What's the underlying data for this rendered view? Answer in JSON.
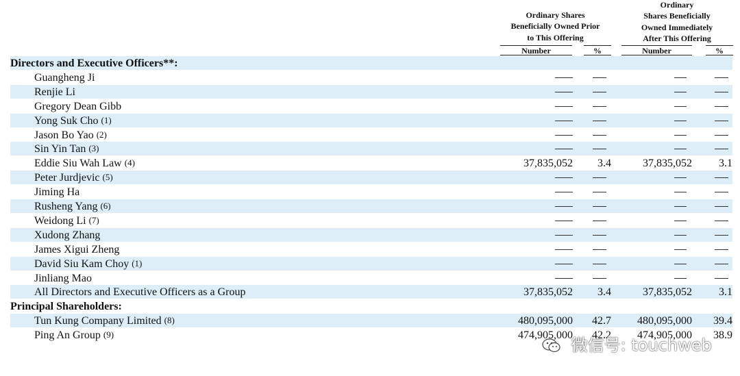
{
  "header": {
    "prior_lines": [
      "Ordinary Shares",
      "Beneficially Owned Prior",
      "to This Offering"
    ],
    "after_lines": [
      "Ordinary",
      "Shares Beneficially",
      "Owned Immediately",
      "After This Offering"
    ],
    "number_label": "Number",
    "percent_label": "%"
  },
  "rows": [
    {
      "name": "Directors and Executive Officers**:",
      "note": "",
      "section": true
    },
    {
      "name": "Guangheng Ji",
      "note": "",
      "v1": "—",
      "v2": "—",
      "v3": "—",
      "v4": "—"
    },
    {
      "name": "Renjie Li",
      "note": "",
      "v1": "—",
      "v2": "—",
      "v3": "—",
      "v4": "—"
    },
    {
      "name": "Gregory Dean Gibb",
      "note": "",
      "v1": "—",
      "v2": "—",
      "v3": "—",
      "v4": "—"
    },
    {
      "name": "Yong Suk Cho",
      "note": "(1)",
      "v1": "—",
      "v2": "—",
      "v3": "—",
      "v4": "—"
    },
    {
      "name": "Jason Bo Yao",
      "note": "(2)",
      "v1": "—",
      "v2": "—",
      "v3": "—",
      "v4": "—"
    },
    {
      "name": "Sin Yin Tan",
      "note": "(3)",
      "v1": "—",
      "v2": "—",
      "v3": "—",
      "v4": "—"
    },
    {
      "name": "Eddie Siu Wah Law",
      "note": "(4)",
      "v1": "37,835,052",
      "v2": "3.4",
      "v3": "37,835,052",
      "v4": "3.1"
    },
    {
      "name": "Peter Jurdjevic",
      "note": "(5)",
      "v1": "—",
      "v2": "—",
      "v3": "—",
      "v4": "—"
    },
    {
      "name": "Jiming Ha",
      "note": "",
      "v1": "—",
      "v2": "—",
      "v3": "—",
      "v4": "—"
    },
    {
      "name": "Rusheng Yang",
      "note": "(6)",
      "v1": "—",
      "v2": "—",
      "v3": "—",
      "v4": "—"
    },
    {
      "name": "Weidong Li",
      "note": "(7)",
      "v1": "—",
      "v2": "—",
      "v3": "—",
      "v4": "—"
    },
    {
      "name": "Xudong Zhang",
      "note": "",
      "v1": "—",
      "v2": "—",
      "v3": "—",
      "v4": "—"
    },
    {
      "name": "James Xigui Zheng",
      "note": "",
      "v1": "—",
      "v2": "—",
      "v3": "—",
      "v4": "—"
    },
    {
      "name": "David Siu Kam Choy",
      "note": "(1)",
      "v1": "—",
      "v2": "—",
      "v3": "—",
      "v4": "—"
    },
    {
      "name": "Jinliang Mao",
      "note": "",
      "v1": "—",
      "v2": "—",
      "v3": "—",
      "v4": "—"
    },
    {
      "name": "All Directors and Executive Officers as a Group",
      "note": "",
      "v1": "37,835,052",
      "v2": "3.4",
      "v3": "37,835,052",
      "v4": "3.1"
    },
    {
      "name": "Principal Shareholders:",
      "note": "",
      "section": true
    },
    {
      "name": "Tun Kung Company Limited",
      "note": "(8)",
      "v1": "480,095,000",
      "v2": "42.7",
      "v3": "480,095,000",
      "v4": "39.4"
    },
    {
      "name": "Ping An Group",
      "note": "(9)",
      "v1": "474,905,000",
      "v2": "42.2",
      "v3": "474,905,000",
      "v4": "38.9"
    }
  ],
  "watermark": {
    "text": "微信号: touchweb",
    "icon": "wechat-icon"
  },
  "colors": {
    "row_shade": "#ddeef9"
  }
}
